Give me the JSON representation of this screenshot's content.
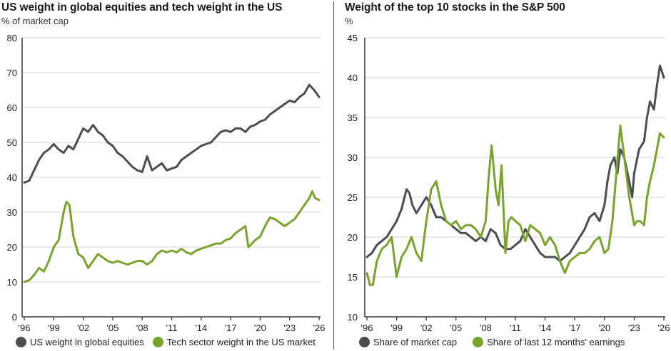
{
  "colors": {
    "gray": "#4a4d52",
    "green": "#7aa32e",
    "grid": "#dcdcdc",
    "axis": "#333333"
  },
  "chart_data": [
    {
      "type": "line",
      "title": "US weight in global equities and tech weight in the US",
      "ylabel": "% of market cap",
      "xlabel": "",
      "ylim": [
        0,
        80
      ],
      "yticks": [
        0,
        10,
        20,
        30,
        40,
        50,
        60,
        70,
        80
      ],
      "xlim": [
        1996,
        2026
      ],
      "xticks": [
        1996,
        1999,
        2002,
        2005,
        2008,
        2011,
        2014,
        2017,
        2020,
        2023,
        2026
      ],
      "xtick_labels": [
        "'96",
        "'99",
        "'02",
        "'05",
        "'08",
        "'11",
        "'14",
        "'17",
        "'20",
        "'23",
        "'26"
      ],
      "grid": true,
      "legend": "bottom",
      "series": [
        {
          "name": "US weight in global equities",
          "color": "#4a4d52",
          "x": [
            1996.0,
            1996.5,
            1997.0,
            1997.5,
            1998.0,
            1998.5,
            1999.0,
            1999.5,
            2000.0,
            2000.5,
            2001.0,
            2001.5,
            2002.0,
            2002.5,
            2003.0,
            2003.5,
            2004.0,
            2004.5,
            2005.0,
            2005.5,
            2006.0,
            2006.5,
            2007.0,
            2007.5,
            2008.0,
            2008.5,
            2009.0,
            2009.5,
            2010.0,
            2010.5,
            2011.0,
            2011.5,
            2012.0,
            2012.5,
            2013.0,
            2013.5,
            2014.0,
            2014.5,
            2015.0,
            2015.5,
            2016.0,
            2016.5,
            2017.0,
            2017.5,
            2018.0,
            2018.5,
            2019.0,
            2019.5,
            2020.0,
            2020.5,
            2021.0,
            2021.5,
            2022.0,
            2022.5,
            2023.0,
            2023.5,
            2024.0,
            2024.5,
            2025.0,
            2025.5,
            2026.0
          ],
          "values": [
            38.5,
            39,
            42,
            45,
            47,
            48,
            49.5,
            48,
            47,
            49,
            48,
            51,
            54,
            53,
            55,
            53,
            52,
            50,
            49,
            47,
            46,
            44.5,
            43,
            42,
            41.5,
            46,
            42,
            43,
            44,
            42,
            42.5,
            43,
            45,
            46,
            47,
            48,
            49,
            49.5,
            50,
            51.5,
            53,
            53.5,
            53,
            54,
            54,
            53,
            54.5,
            55,
            56,
            56.5,
            58,
            59,
            60,
            61,
            62,
            61.5,
            63,
            64,
            66.5,
            65,
            63
          ]
        },
        {
          "name": "Tech sector weight in the US market",
          "color": "#7aa32e",
          "x": [
            1996.0,
            1996.5,
            1997.0,
            1997.5,
            1998.0,
            1998.5,
            1999.0,
            1999.5,
            2000.0,
            2000.3,
            2000.6,
            2001.0,
            2001.5,
            2002.0,
            2002.5,
            2003.0,
            2003.5,
            2004.0,
            2004.5,
            2005.0,
            2005.5,
            2006.0,
            2006.5,
            2007.0,
            2007.5,
            2008.0,
            2008.5,
            2009.0,
            2009.5,
            2010.0,
            2010.5,
            2011.0,
            2011.5,
            2012.0,
            2012.5,
            2013.0,
            2013.5,
            2014.0,
            2014.5,
            2015.0,
            2015.5,
            2016.0,
            2016.5,
            2017.0,
            2017.5,
            2018.0,
            2018.5,
            2018.8,
            2019.0,
            2019.5,
            2020.0,
            2020.5,
            2021.0,
            2021.5,
            2022.0,
            2022.5,
            2023.0,
            2023.5,
            2024.0,
            2024.5,
            2025.0,
            2025.3,
            2025.6,
            2026.0
          ],
          "values": [
            10,
            10.5,
            12,
            14,
            13,
            16,
            20,
            22,
            30,
            33,
            32,
            23,
            18,
            17,
            14,
            16,
            18,
            17,
            16,
            15.5,
            16,
            15.5,
            15,
            15.5,
            16,
            16,
            15,
            16,
            18,
            19,
            18.5,
            19,
            18.5,
            19.5,
            18.5,
            18,
            19,
            19.5,
            20,
            20.5,
            21,
            21,
            22,
            22.5,
            24,
            25,
            26,
            20,
            20.5,
            22,
            23,
            26,
            28.5,
            28,
            27,
            26,
            27,
            28,
            30,
            32,
            34,
            36,
            34,
            33.5
          ]
        }
      ]
    },
    {
      "type": "line",
      "title": "Weight of the top 10 stocks in the S&P 500",
      "ylabel": "%",
      "xlabel": "",
      "ylim": [
        10,
        45
      ],
      "yticks": [
        10,
        15,
        20,
        25,
        30,
        35,
        40,
        45
      ],
      "xlim": [
        1996,
        2026
      ],
      "xticks": [
        1996,
        1999,
        2002,
        2005,
        2008,
        2011,
        2014,
        2017,
        2020,
        2023,
        2026
      ],
      "xtick_labels": [
        "'96",
        "'99",
        "'02",
        "'05",
        "'08",
        "'11",
        "'14",
        "'17",
        "'20",
        "'23",
        "'26"
      ],
      "grid": true,
      "legend": "bottom",
      "series": [
        {
          "name": "Share of market cap",
          "color": "#4a4d52",
          "x": [
            1996.0,
            1996.5,
            1997.0,
            1997.5,
            1998.0,
            1998.5,
            1999.0,
            1999.5,
            2000.0,
            2000.3,
            2000.6,
            2001.0,
            2001.5,
            2002.0,
            2002.5,
            2003.0,
            2003.5,
            2004.0,
            2004.5,
            2005.0,
            2005.5,
            2006.0,
            2006.5,
            2007.0,
            2007.5,
            2008.0,
            2008.5,
            2009.0,
            2009.5,
            2010.0,
            2010.5,
            2011.0,
            2011.5,
            2012.0,
            2012.5,
            2013.0,
            2013.5,
            2014.0,
            2014.5,
            2015.0,
            2015.5,
            2016.0,
            2016.5,
            2017.0,
            2017.5,
            2018.0,
            2018.5,
            2019.0,
            2019.5,
            2020.0,
            2020.3,
            2020.6,
            2021.0,
            2021.3,
            2021.6,
            2022.0,
            2022.5,
            2022.8,
            2023.0,
            2023.5,
            2024.0,
            2024.3,
            2024.6,
            2025.0,
            2025.3,
            2025.6,
            2026.0
          ],
          "values": [
            17.5,
            18,
            19,
            19.5,
            20,
            21,
            22,
            23.5,
            26,
            25.5,
            24,
            23,
            24,
            25,
            24,
            22.5,
            22.5,
            22,
            21.5,
            21,
            20.5,
            20.5,
            20,
            19.5,
            20,
            19.5,
            21,
            20.5,
            19,
            18.5,
            18.5,
            19,
            19.5,
            21,
            20,
            19,
            18,
            17.5,
            17.5,
            17.5,
            17,
            17.5,
            18,
            19,
            20,
            21,
            22.5,
            23,
            22,
            24,
            27,
            29,
            30,
            28,
            31,
            30,
            27,
            25,
            28,
            31,
            32,
            35,
            37,
            36,
            39,
            41.5,
            40
          ]
        },
        {
          "name": "Share of last 12 months' earnings",
          "color": "#7aa32e",
          "x": [
            1996.0,
            1996.3,
            1996.6,
            1997.0,
            1997.5,
            1998.0,
            1998.5,
            1999.0,
            1999.5,
            2000.0,
            2000.5,
            2001.0,
            2001.5,
            2002.0,
            2002.5,
            2003.0,
            2003.5,
            2004.0,
            2004.5,
            2005.0,
            2005.5,
            2006.0,
            2006.5,
            2007.0,
            2007.5,
            2008.0,
            2008.3,
            2008.6,
            2009.0,
            2009.3,
            2009.6,
            2010.0,
            2010.3,
            2010.6,
            2011.0,
            2011.5,
            2012.0,
            2012.5,
            2013.0,
            2013.5,
            2014.0,
            2014.5,
            2015.0,
            2015.5,
            2016.0,
            2016.5,
            2017.0,
            2017.5,
            2018.0,
            2018.5,
            2019.0,
            2019.5,
            2020.0,
            2020.4,
            2020.8,
            2021.2,
            2021.6,
            2022.0,
            2022.5,
            2023.0,
            2023.3,
            2023.6,
            2024.0,
            2024.3,
            2024.6,
            2025.0,
            2025.3,
            2025.6,
            2026.0
          ],
          "values": [
            15.5,
            14,
            14,
            17,
            18.5,
            19,
            20,
            15,
            17.5,
            18.5,
            20,
            18,
            17,
            22,
            26,
            27,
            24,
            22,
            21.5,
            22,
            21,
            21.5,
            21.5,
            21,
            20,
            22,
            27.5,
            31.5,
            26,
            24,
            29,
            18,
            22,
            22.5,
            22,
            21.5,
            19.5,
            21.5,
            21,
            20.5,
            19,
            20,
            19,
            17,
            15.5,
            17,
            17.5,
            18,
            18,
            18.5,
            19.5,
            20,
            18,
            18.5,
            22,
            28,
            34,
            30,
            25,
            21.5,
            22,
            22,
            21.5,
            25,
            27,
            29,
            31,
            33,
            32.5
          ]
        }
      ]
    }
  ]
}
